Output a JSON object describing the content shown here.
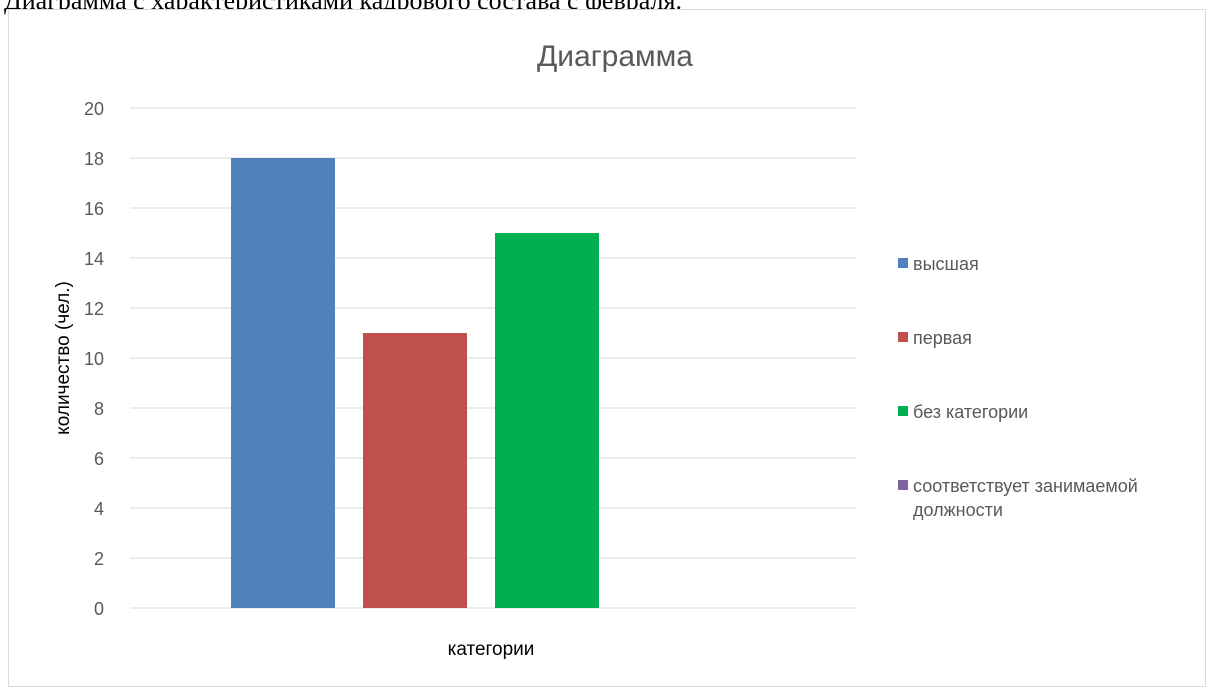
{
  "document": {
    "heading": "Диаграмма с характеристиками кадрового состава с февраля."
  },
  "chart_data": {
    "type": "bar",
    "title": "Диаграмма",
    "xlabel": "категории",
    "ylabel": "количество (чел.)",
    "categories": [
      ""
    ],
    "ylim": [
      0,
      20
    ],
    "yticks": [
      0,
      2,
      4,
      6,
      8,
      10,
      12,
      14,
      16,
      18,
      20
    ],
    "grid": true,
    "legend_position": "right",
    "series": [
      {
        "name": "высшая",
        "values": [
          18
        ],
        "color": "#4f81bd"
      },
      {
        "name": "первая",
        "values": [
          11
        ],
        "color": "#c0504d"
      },
      {
        "name": "без категории",
        "values": [
          15
        ],
        "color": "#00b050"
      },
      {
        "name": "соответствует занимаемой должности",
        "values": [
          0
        ],
        "color": "#8064a2"
      }
    ]
  }
}
